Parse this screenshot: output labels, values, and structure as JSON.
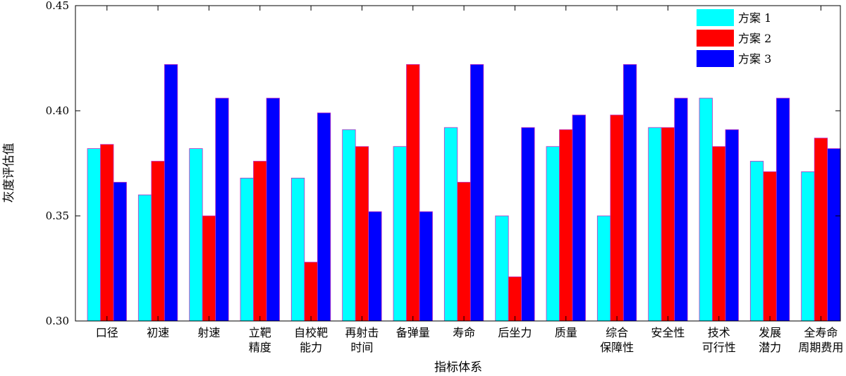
{
  "chart_data": {
    "type": "bar",
    "xlabel": "指标体系",
    "ylabel": "灰度评估值",
    "ylim": [
      0.3,
      0.45
    ],
    "yticks": [
      "0.30",
      "0.35",
      "0.40",
      "0.45"
    ],
    "legend_position": "top-right",
    "categories": [
      [
        "口径"
      ],
      [
        "初速"
      ],
      [
        "射速"
      ],
      [
        "立靶",
        "精度"
      ],
      [
        "自校靶",
        "能力"
      ],
      [
        "再射击",
        "时间"
      ],
      [
        "备弹量"
      ],
      [
        "寿命"
      ],
      [
        "后坐力"
      ],
      [
        "质量"
      ],
      [
        "综合",
        "保障性"
      ],
      [
        "安全性"
      ],
      [
        "技术",
        "可行性"
      ],
      [
        "发展",
        "潜力"
      ],
      [
        "全寿命",
        "周期费用"
      ]
    ],
    "series": [
      {
        "name": "方案 1",
        "color": "#00ffff",
        "values": [
          0.382,
          0.36,
          0.382,
          0.368,
          0.368,
          0.391,
          0.383,
          0.392,
          0.35,
          0.383,
          0.35,
          0.392,
          0.406,
          0.376,
          0.371
        ]
      },
      {
        "name": "方案 2",
        "color": "#ff0000",
        "values": [
          0.384,
          0.376,
          0.35,
          0.376,
          0.328,
          0.383,
          0.422,
          0.366,
          0.321,
          0.391,
          0.398,
          0.392,
          0.383,
          0.371,
          0.387
        ]
      },
      {
        "name": "方案 3",
        "color": "#0000ff",
        "values": [
          0.366,
          0.422,
          0.406,
          0.406,
          0.399,
          0.352,
          0.352,
          0.422,
          0.392,
          0.398,
          0.422,
          0.406,
          0.391,
          0.406,
          0.382
        ]
      }
    ]
  }
}
